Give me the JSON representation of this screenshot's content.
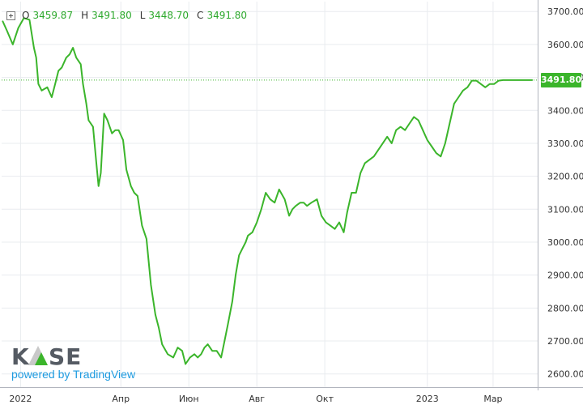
{
  "ohlc": {
    "o_label": "O",
    "o_value": "3459.87",
    "h_label": "H",
    "h_value": "3491.80",
    "l_label": "L",
    "l_value": "3448.70",
    "c_label": "C",
    "c_value": "3491.80"
  },
  "last_price_label": "3491.80",
  "logo": {
    "brand": "KASE",
    "powered_by": "powered by TradingView"
  },
  "colors": {
    "line": "#3bb52b",
    "grid": "#e9ecef",
    "axis_text": "#333333",
    "badge": "#3bb52b"
  },
  "chart_data": {
    "type": "line",
    "title": "",
    "xlabel": "",
    "ylabel": "",
    "ylim": [
      2560,
      3730
    ],
    "y_ticks": [
      2600,
      2700,
      2800,
      2900,
      3000,
      3100,
      3200,
      3300,
      3400,
      3500,
      3600,
      3700
    ],
    "y_tick_labels": [
      "2600.00",
      "2700.00",
      "2800.00",
      "2900.00",
      "3000.00",
      "3100.00",
      "3200.00",
      "3300.00",
      "3400.00",
      "3500.00",
      "3600.00",
      "3700.00"
    ],
    "x_range": [
      "2021-12-15",
      "2023-04-10"
    ],
    "x_ticks": [
      {
        "date": "2022-01-01",
        "label": "2022"
      },
      {
        "date": "2022-04-01",
        "label": "Апр"
      },
      {
        "date": "2022-06-01",
        "label": "Июн"
      },
      {
        "date": "2022-08-01",
        "label": "Авг"
      },
      {
        "date": "2022-10-01",
        "label": "Окт"
      },
      {
        "date": "2023-01-01",
        "label": "2023"
      },
      {
        "date": "2023-03-01",
        "label": "Мар"
      }
    ],
    "grid": true,
    "last_value": 3491.8,
    "series": [
      {
        "x": [
          "2021-12-16",
          "2021-12-20",
          "2021-12-25",
          "2021-12-30",
          "2022-01-04",
          "2022-01-09",
          "2022-01-13",
          "2022-01-15",
          "2022-01-17",
          "2022-01-20",
          "2022-01-25",
          "2022-01-29",
          "2022-02-01",
          "2022-02-04",
          "2022-02-07",
          "2022-02-11",
          "2022-02-14",
          "2022-02-17",
          "2022-02-20",
          "2022-02-24",
          "2022-02-26",
          "2022-03-01",
          "2022-03-03",
          "2022-03-07",
          "2022-03-10",
          "2022-03-12",
          "2022-03-14",
          "2022-03-17",
          "2022-03-20",
          "2022-03-24",
          "2022-03-27",
          "2022-03-30",
          "2022-04-03",
          "2022-04-06",
          "2022-04-10",
          "2022-04-13",
          "2022-04-16",
          "2022-04-20",
          "2022-04-24",
          "2022-04-28",
          "2022-05-02",
          "2022-05-05",
          "2022-05-08",
          "2022-05-13",
          "2022-05-18",
          "2022-05-22",
          "2022-05-26",
          "2022-05-29",
          "2022-06-02",
          "2022-06-06",
          "2022-06-09",
          "2022-06-12",
          "2022-06-15",
          "2022-06-18",
          "2022-06-22",
          "2022-06-26",
          "2022-06-30",
          "2022-07-03",
          "2022-07-06",
          "2022-07-10",
          "2022-07-13",
          "2022-07-16",
          "2022-07-19",
          "2022-07-22",
          "2022-07-24",
          "2022-07-28",
          "2022-08-01",
          "2022-08-05",
          "2022-08-09",
          "2022-08-13",
          "2022-08-17",
          "2022-08-21",
          "2022-08-26",
          "2022-08-30",
          "2022-09-02",
          "2022-09-05",
          "2022-09-09",
          "2022-09-12",
          "2022-09-15",
          "2022-09-19",
          "2022-09-24",
          "2022-09-28",
          "2022-10-02",
          "2022-10-06",
          "2022-10-10",
          "2022-10-14",
          "2022-10-18",
          "2022-10-21",
          "2022-10-25",
          "2022-10-29",
          "2022-11-02",
          "2022-11-06",
          "2022-11-10",
          "2022-11-14",
          "2022-11-18",
          "2022-11-22",
          "2022-11-26",
          "2022-11-30",
          "2022-12-04",
          "2022-12-08",
          "2022-12-12",
          "2022-12-16",
          "2022-12-20",
          "2022-12-24",
          "2022-12-28",
          "2023-01-01",
          "2023-01-05",
          "2023-01-09",
          "2023-01-13",
          "2023-01-17",
          "2023-01-21",
          "2023-01-25",
          "2023-01-29",
          "2023-02-02",
          "2023-02-06",
          "2023-02-10",
          "2023-02-14",
          "2023-02-18",
          "2023-02-22",
          "2023-02-26",
          "2023-03-02",
          "2023-03-06",
          "2023-03-10",
          "2023-03-14",
          "2023-03-18",
          "2023-03-22",
          "2023-03-26",
          "2023-03-30",
          "2023-04-02",
          "2023-04-05"
        ],
        "y": [
          3670,
          3640,
          3600,
          3650,
          3680,
          3675,
          3590,
          3560,
          3480,
          3460,
          3470,
          3440,
          3480,
          3520,
          3530,
          3560,
          3570,
          3590,
          3560,
          3540,
          3480,
          3420,
          3370,
          3350,
          3240,
          3170,
          3210,
          3390,
          3370,
          3330,
          3340,
          3340,
          3310,
          3220,
          3170,
          3150,
          3140,
          3050,
          3010,
          2870,
          2780,
          2740,
          2690,
          2660,
          2650,
          2680,
          2670,
          2630,
          2650,
          2660,
          2650,
          2660,
          2680,
          2690,
          2670,
          2670,
          2650,
          2700,
          2750,
          2820,
          2900,
          2960,
          2980,
          3000,
          3020,
          3030,
          3060,
          3100,
          3150,
          3130,
          3120,
          3160,
          3130,
          3080,
          3100,
          3110,
          3120,
          3120,
          3110,
          3120,
          3130,
          3080,
          3060,
          3050,
          3040,
          3060,
          3030,
          3090,
          3150,
          3150,
          3210,
          3240,
          3250,
          3260,
          3280,
          3300,
          3320,
          3300,
          3340,
          3350,
          3340,
          3360,
          3380,
          3370,
          3340,
          3310,
          3290,
          3270,
          3260,
          3300,
          3360,
          3420,
          3440,
          3460,
          3470,
          3490,
          3490,
          3480,
          3470,
          3480,
          3480,
          3490,
          3491.8,
          3491.8,
          3491.8,
          3491.8,
          3491.8,
          3491.8,
          3491.8,
          3491.8
        ]
      }
    ]
  }
}
